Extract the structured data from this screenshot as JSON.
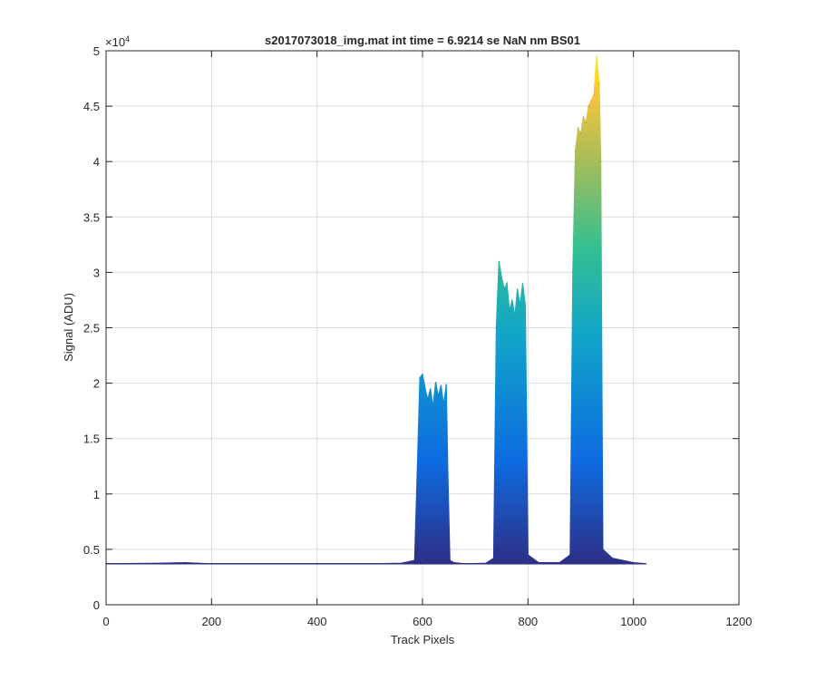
{
  "chart_data": {
    "type": "area",
    "title": "s2017073018_img.mat int time = 6.9214 se  NaN nm BS01",
    "xlabel": "Track Pixels",
    "ylabel": "Signal (ADU)",
    "xlim": [
      0,
      1200
    ],
    "ylim": [
      0,
      50000
    ],
    "x_ticks": [
      0,
      200,
      400,
      600,
      800,
      1000,
      1200
    ],
    "x_tick_labels": [
      "0",
      "200",
      "400",
      "600",
      "800",
      "1000",
      "1200"
    ],
    "y_ticks": [
      0,
      5000,
      10000,
      15000,
      20000,
      25000,
      30000,
      35000,
      40000,
      45000,
      50000
    ],
    "y_tick_labels": [
      "0",
      "0.5",
      "1",
      "1.5",
      "2",
      "2.5",
      "3",
      "3.5",
      "4",
      "4.5",
      "5"
    ],
    "y_exponent_label": "×10",
    "y_exponent_power": "4",
    "grid": true,
    "colormap": "parula",
    "colors": {
      "low": "#2e2f86",
      "mid_low": "#0d6be0",
      "mid": "#11a6c8",
      "mid_high": "#35c08f",
      "high_mid": "#a3bd5b",
      "high": "#f9c53a",
      "peak": "#f8f810"
    },
    "baseline": 3700,
    "series": [
      {
        "x": [
          0,
          100,
          150,
          200,
          300,
          400,
          500,
          560,
          585,
          590,
          595,
          600,
          605,
          610,
          615,
          620,
          625,
          630,
          635,
          640,
          645,
          648,
          652,
          660,
          680,
          720,
          735,
          740,
          745,
          750,
          755,
          760,
          765,
          770,
          775,
          780,
          785,
          790,
          795,
          800,
          820,
          860,
          880,
          885,
          890,
          895,
          900,
          905,
          910,
          915,
          920,
          925,
          930,
          935,
          938,
          942,
          960,
          1000,
          1024
        ],
        "y": [
          3700,
          3750,
          3800,
          3700,
          3700,
          3700,
          3700,
          3750,
          4000,
          12000,
          20500,
          20800,
          19500,
          18500,
          19500,
          17800,
          20100,
          18800,
          19800,
          18000,
          19900,
          12000,
          4000,
          3800,
          3700,
          3750,
          4200,
          25000,
          31000,
          29500,
          28500,
          29000,
          26500,
          27500,
          26000,
          28500,
          27000,
          29000,
          27000,
          4500,
          3800,
          3800,
          4500,
          30000,
          41000,
          43000,
          42500,
          44000,
          43500,
          45000,
          45500,
          46000,
          49500,
          47000,
          40000,
          5000,
          4200,
          3800,
          3700
        ]
      }
    ]
  }
}
